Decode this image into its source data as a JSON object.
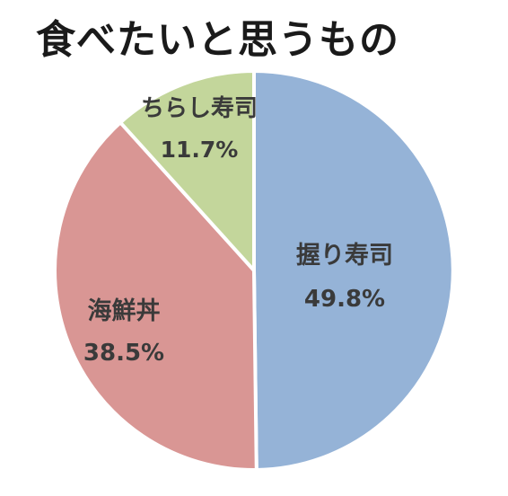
{
  "chart_data": {
    "type": "pie",
    "title": "食べたいと思うもの",
    "slices": [
      {
        "label": "握り寿司",
        "value": 49.8,
        "value_label": "49.8%",
        "color": "#95b3d7"
      },
      {
        "label": "海鮮丼",
        "value": 38.5,
        "value_label": "38.5%",
        "color": "#d99694"
      },
      {
        "label": "ちらし寿司",
        "value": 11.7,
        "value_label": "11.7%",
        "color": "#c3d69b"
      }
    ],
    "start_angle": "12 o'clock",
    "direction": "clockwise",
    "legend": "none",
    "slice_border_color": "#ffffff"
  }
}
